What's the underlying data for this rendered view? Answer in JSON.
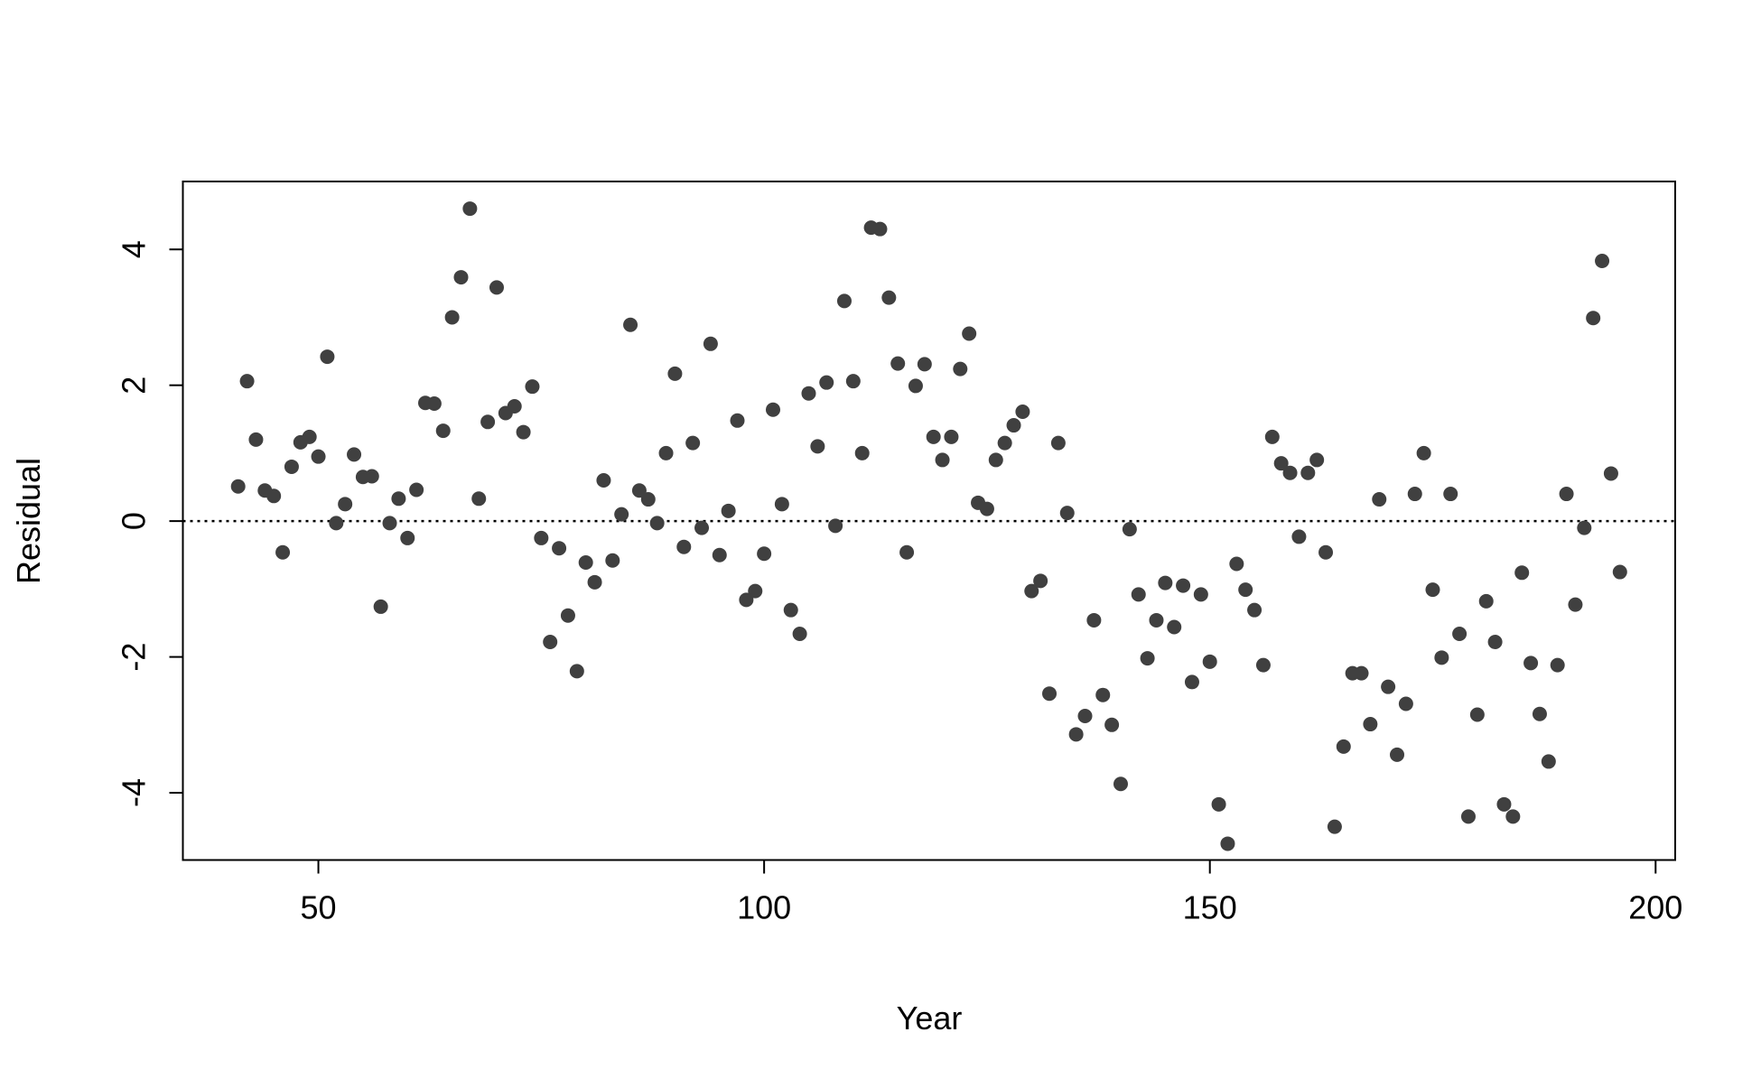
{
  "chart_data": {
    "type": "scatter",
    "x_label": "Year",
    "y_label": "Residual",
    "x": [
      41,
      42,
      43,
      44,
      45,
      46,
      47,
      48,
      49,
      50,
      51,
      52,
      53,
      54,
      55,
      56,
      57,
      58,
      59,
      60,
      61,
      62,
      63,
      64,
      65,
      66,
      67,
      68,
      69,
      70,
      71,
      72,
      73,
      74,
      75,
      76,
      77,
      78,
      79,
      80,
      81,
      82,
      83,
      84,
      85,
      86,
      87,
      88,
      89,
      90,
      91,
      92,
      93,
      94,
      95,
      96,
      97,
      98,
      99,
      100,
      101,
      102,
      103,
      104,
      105,
      106,
      107,
      108,
      109,
      110,
      111,
      112,
      113,
      114,
      115,
      116,
      117,
      118,
      119,
      120,
      121,
      122,
      123,
      124,
      125,
      126,
      127,
      128,
      129,
      130,
      131,
      132,
      133,
      134,
      135,
      136,
      137,
      138,
      139,
      140,
      141,
      142,
      143,
      144,
      145,
      146,
      147,
      148,
      149,
      150,
      151,
      152,
      153,
      154,
      155,
      156,
      157,
      158,
      159,
      160,
      161,
      162,
      163,
      164,
      165,
      166,
      167,
      168,
      169,
      170,
      171,
      172,
      173,
      174,
      175,
      176,
      177,
      178,
      179,
      180,
      181,
      182,
      183,
      184,
      185,
      186,
      187,
      188,
      189,
      190,
      191,
      192,
      193,
      194,
      195,
      196
    ],
    "values": [
      0.51,
      2.06,
      1.2,
      0.45,
      0.37,
      -0.46,
      0.8,
      1.16,
      1.24,
      0.95,
      2.42,
      -0.03,
      0.25,
      0.98,
      0.65,
      0.66,
      -1.26,
      -0.03,
      0.33,
      -0.25,
      0.46,
      1.74,
      1.73,
      1.33,
      3.0,
      3.59,
      4.6,
      0.33,
      1.46,
      3.44,
      1.59,
      1.69,
      1.31,
      1.98,
      -0.25,
      -1.78,
      -0.4,
      -1.39,
      -2.21,
      -0.61,
      -0.9,
      0.6,
      -0.58,
      0.1,
      2.89,
      0.45,
      0.32,
      -0.03,
      1.0,
      2.17,
      -0.38,
      1.15,
      -0.1,
      2.61,
      -0.5,
      0.15,
      1.48,
      -1.16,
      -1.03,
      -0.48,
      1.64,
      0.25,
      -1.31,
      -1.66,
      1.88,
      1.1,
      2.04,
      -0.07,
      3.24,
      2.06,
      1.0,
      4.32,
      4.3,
      3.29,
      2.32,
      -0.46,
      1.99,
      2.31,
      1.24,
      0.9,
      1.24,
      2.24,
      2.76,
      0.27,
      0.18,
      0.9,
      1.15,
      1.41,
      1.61,
      -1.03,
      -0.88,
      -2.54,
      1.15,
      0.12,
      -3.14,
      -2.87,
      -1.46,
      -2.56,
      -3.0,
      -3.87,
      -0.12,
      -1.08,
      -2.02,
      -1.46,
      -0.91,
      -1.56,
      -0.95,
      -2.37,
      -1.08,
      -2.07,
      -4.17,
      -4.75,
      -0.63,
      -1.01,
      -1.31,
      -2.12,
      1.24,
      0.85,
      0.71,
      -0.23,
      0.71,
      0.9,
      -0.46,
      -4.5,
      -3.32,
      -2.24,
      -2.24,
      -2.99,
      0.32,
      -2.44,
      -3.44,
      -2.69,
      0.4,
      1.0,
      -1.01,
      -2.01,
      0.4,
      -1.66,
      -4.35,
      -2.85,
      -1.18,
      -1.78,
      -4.17,
      -4.35,
      -0.76,
      -2.09,
      -2.84,
      -3.54,
      -2.12,
      0.4,
      -1.23,
      -0.1,
      2.99,
      3.83,
      0.7,
      -0.75
    ],
    "color": "#404040",
    "xlim": [
      34.8,
      202.2
    ],
    "ylim": [
      -4.99,
      5.0
    ],
    "xticks": [
      50,
      100,
      150,
      200
    ],
    "yticks": [
      -4,
      -2,
      0,
      2,
      4
    ],
    "reference_line": 0
  }
}
